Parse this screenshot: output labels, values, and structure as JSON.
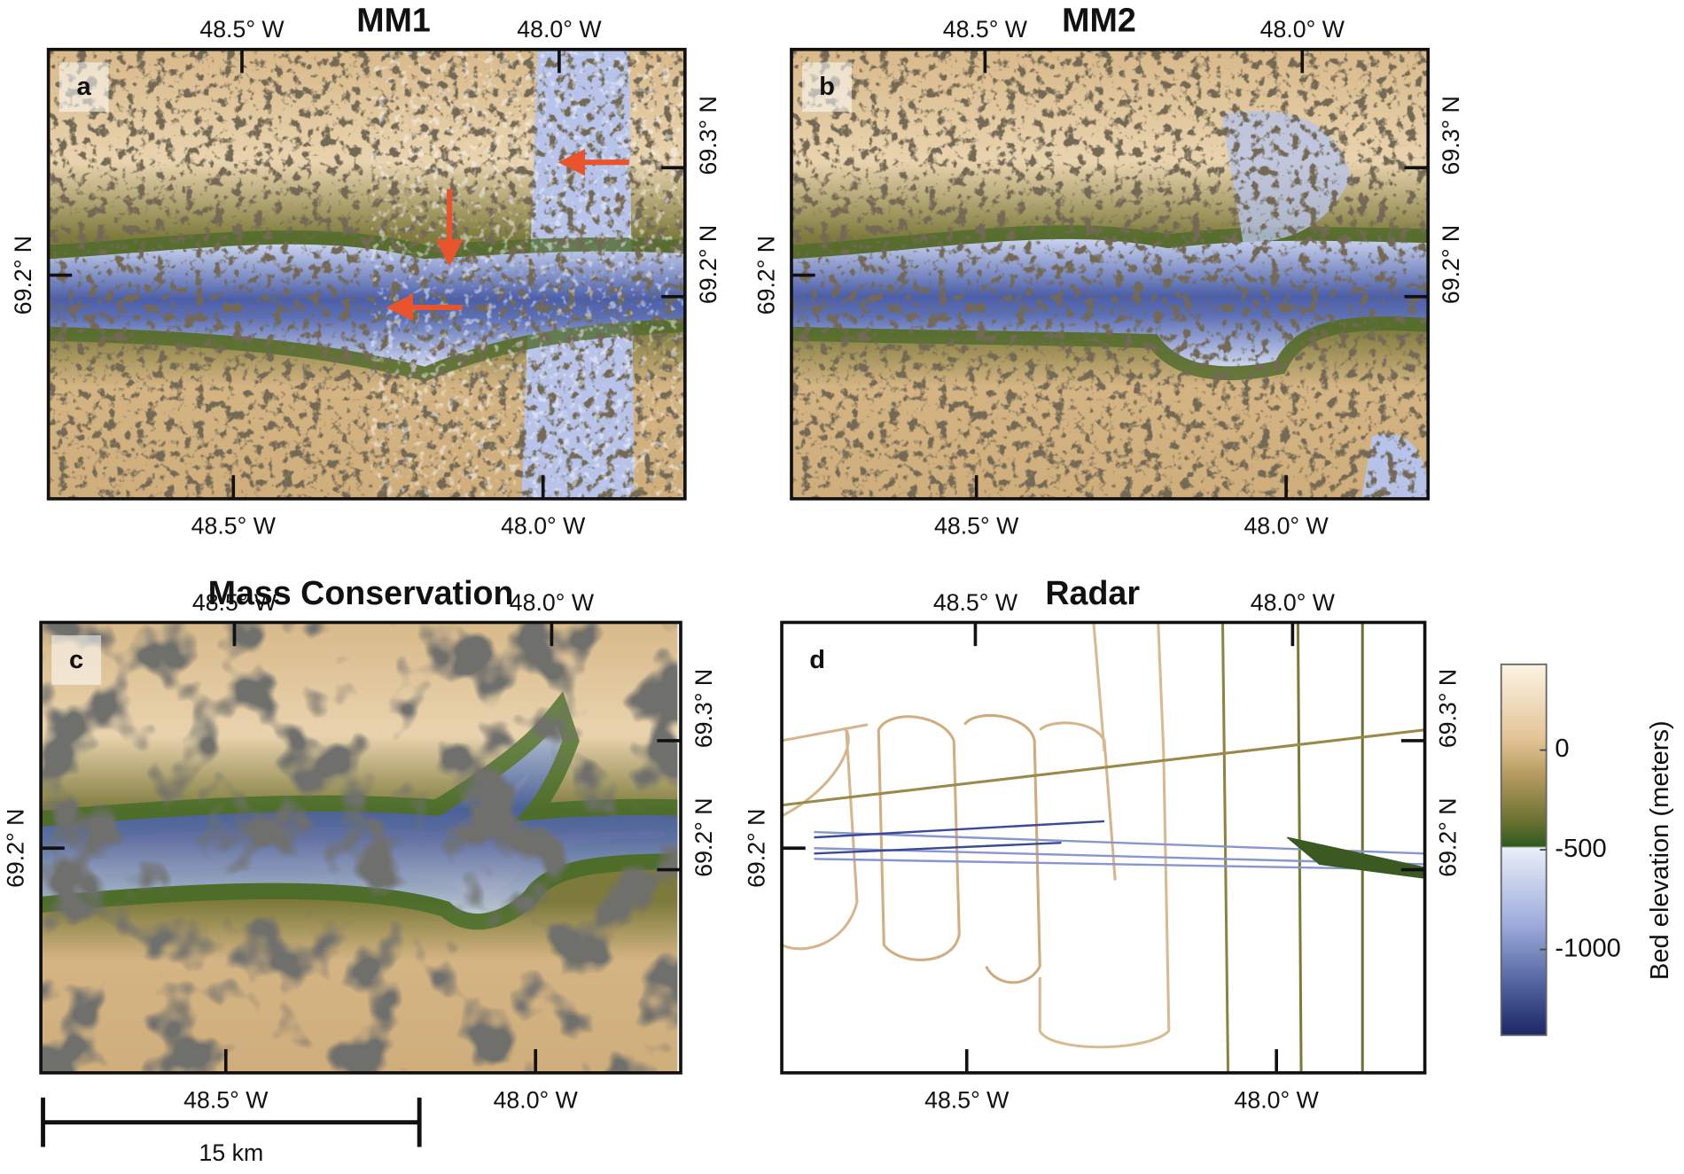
{
  "panels": [
    {
      "label": "a",
      "title": "MM1",
      "top_ticks": [
        "48.5° W",
        "48.0° W"
      ],
      "bottom_ticks": [
        "48.5° W",
        "48.0° W"
      ],
      "left_ticks": [
        "69.2° N"
      ],
      "right_ticks": [
        "69.3° N",
        "69.2° N"
      ]
    },
    {
      "label": "b",
      "title": "MM2",
      "top_ticks": [
        "48.5° W",
        "48.0° W"
      ],
      "bottom_ticks": [
        "48.5° W",
        "48.0° W"
      ],
      "left_ticks": [
        "69.2° N"
      ],
      "right_ticks": [
        "69.3° N",
        "69.2° N"
      ]
    },
    {
      "label": "c",
      "title": "Mass Conservation",
      "top_ticks": [
        "48.5° W",
        "48.0° W"
      ],
      "bottom_ticks": [
        "48.5° W",
        "48.0° W"
      ],
      "left_ticks": [
        "69.2° N"
      ],
      "right_ticks": [
        "69.3° N",
        "69.2° N"
      ]
    },
    {
      "label": "d",
      "title": "Radar",
      "top_ticks": [
        "48.5° W",
        "48.0° W"
      ],
      "bottom_ticks": [
        "48.5° W",
        "48.0° W"
      ],
      "left_ticks": [
        "69.2° N"
      ],
      "right_ticks": [
        "69.3° N",
        "69.2° N"
      ]
    }
  ],
  "colorbar": {
    "label": "Bed elevation (meters)",
    "range": [
      -1430,
      430
    ],
    "ticks": [
      0,
      -500,
      -1000
    ]
  },
  "scale_bar": {
    "label": "15 km"
  }
}
